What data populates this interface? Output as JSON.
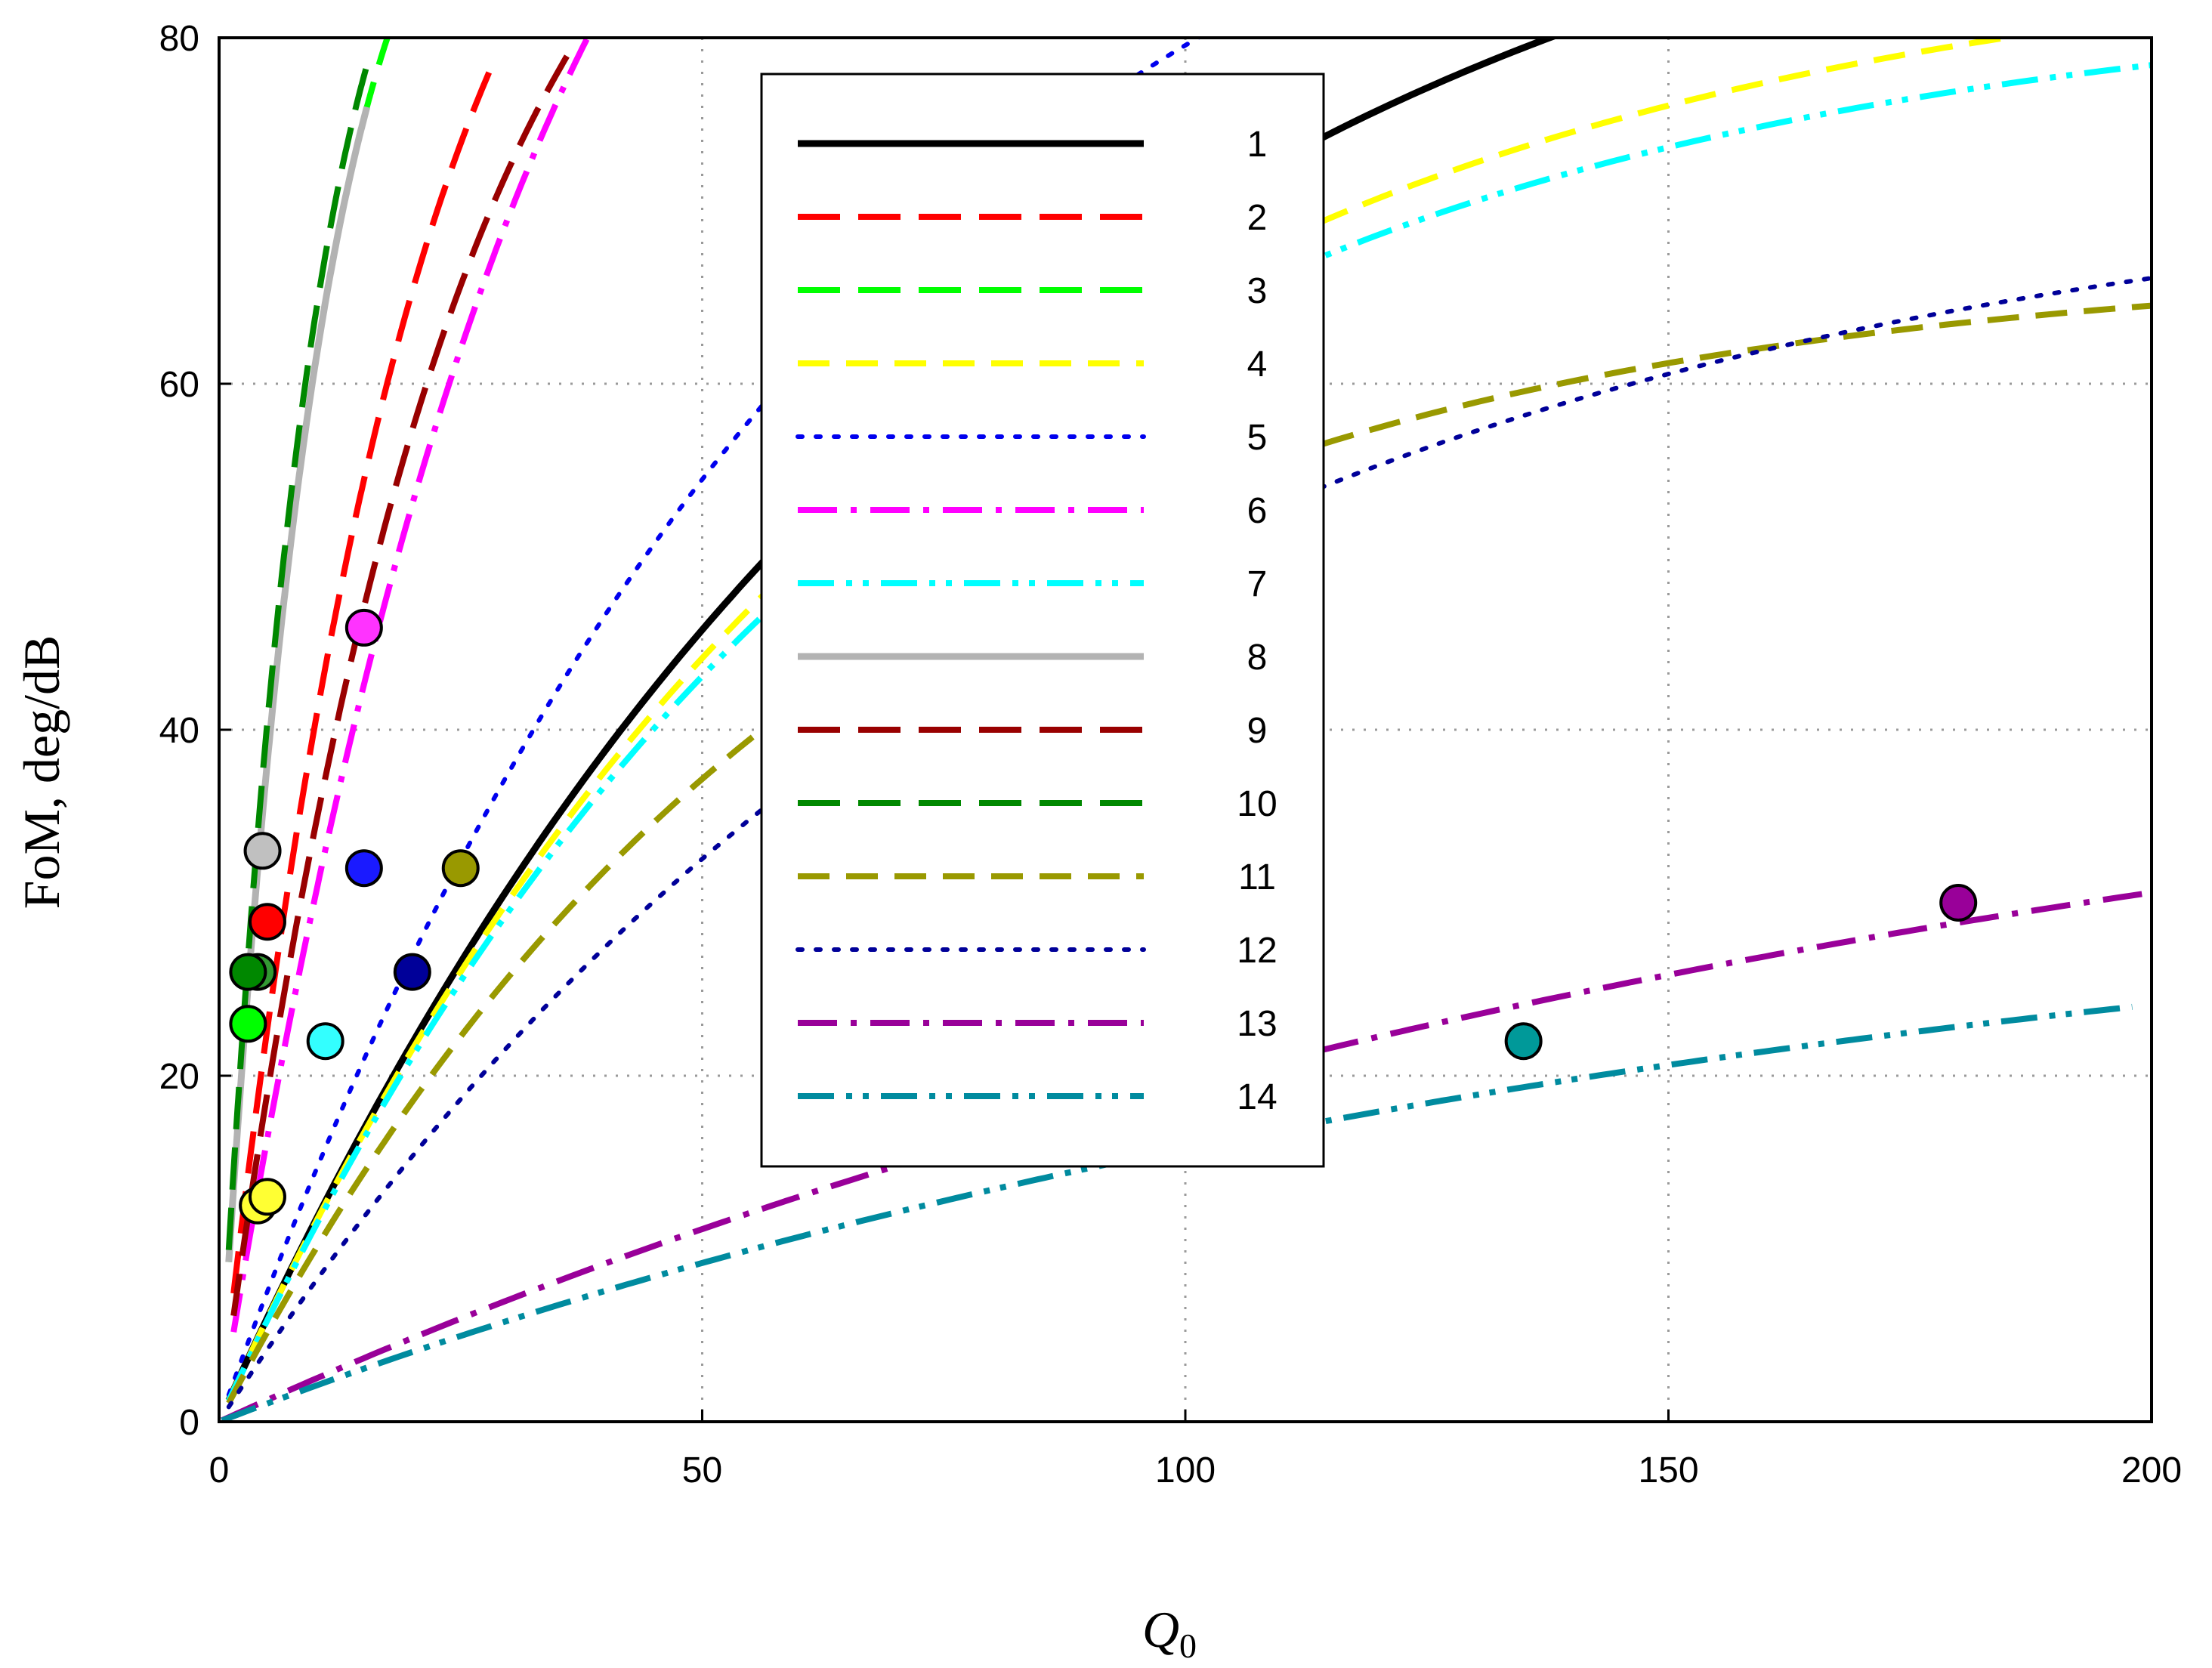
{
  "chart_data": {
    "type": "line",
    "xlabel_main": "Q",
    "xlabel_sub": "0",
    "ylabel": "FoM, deg/dB",
    "xlim": [
      0,
      200
    ],
    "ylim": [
      0,
      80
    ],
    "x_ticks": [
      0,
      50,
      100,
      150,
      200
    ],
    "y_ticks": [
      0,
      20,
      40,
      60,
      80
    ],
    "grid": true,
    "legend_position": "top-center",
    "series": [
      {
        "name": "1",
        "color": "#000000",
        "style": "solid",
        "a": 96.3,
        "b": 0.0129,
        "x_start": 1.0,
        "x_end": 200,
        "marker": {
          "x": 4,
          "y": 12.5,
          "color": "#ffff33"
        }
      },
      {
        "name": "2",
        "color": "#ff0000",
        "style": "dash-long",
        "a": 104.5,
        "b": 0.0491,
        "x_start": 1.5,
        "x_end": 28,
        "marker": {
          "x": 5,
          "y": 28.9,
          "color": "#ff0000"
        }
      },
      {
        "name": "3",
        "color": "#00ff00",
        "style": "dash-long",
        "a": 97,
        "b": 0.1,
        "x_start": 1.0,
        "x_end": 18,
        "marker": {
          "x": 3,
          "y": 23,
          "color": "#00ff00"
        }
      },
      {
        "name": "4",
        "color": "#ffff00",
        "style": "dash",
        "a": 86,
        "b": 0.0144,
        "x_start": 1.0,
        "x_end": 200,
        "marker": {
          "x": 5,
          "y": 13,
          "color": "#ffff33"
        }
      },
      {
        "name": "5",
        "color": "#0000ee",
        "style": "dot",
        "a": 101,
        "b": 0.0155,
        "x_start": 1.0,
        "x_end": 200,
        "marker": {
          "x": 15,
          "y": 32,
          "color": "#1a1aff"
        }
      },
      {
        "name": "6",
        "color": "#ff00ff",
        "style": "dash-dot",
        "a": 117,
        "b": 0.0302,
        "x_start": 1.5,
        "x_end": 42,
        "marker": {
          "x": 15,
          "y": 45.9,
          "color": "#ff33ff"
        }
      },
      {
        "name": "7",
        "color": "#00ffff",
        "style": "dash-dot-dot",
        "a": 82.8,
        "b": 0.0147,
        "x_start": 1.0,
        "x_end": 200,
        "marker": {
          "x": 11,
          "y": 22,
          "color": "#33ffff"
        }
      },
      {
        "name": "8",
        "color": "#b3b3b3",
        "style": "solid",
        "a": 97,
        "b": 0.1,
        "x_start": 1.0,
        "x_end": 15.3,
        "marker": {
          "x": 4.5,
          "y": 33,
          "color": "#c0c0c0"
        }
      },
      {
        "name": "9",
        "color": "#990000",
        "style": "dash-long",
        "a": 102,
        "b": 0.0413,
        "x_start": 1.5,
        "x_end": 36,
        "marker": {
          "x": 4,
          "y": 26,
          "color": "#339933"
        }
      },
      {
        "name": "10",
        "color": "#008800",
        "style": "dash-long",
        "a": 97,
        "b": 0.108,
        "x_start": 1.0,
        "x_end": 15.3,
        "marker": {
          "x": 3,
          "y": 26,
          "color": "#008800"
        }
      },
      {
        "name": "11",
        "color": "#999900",
        "style": "dash",
        "a": 67.2,
        "b": 0.0161,
        "x_start": 1.0,
        "x_end": 200,
        "marker": {
          "x": 25,
          "y": 32,
          "color": "#999900"
        }
      },
      {
        "name": "12",
        "color": "#000099",
        "style": "dot",
        "a": 73,
        "b": 0.0118,
        "x_start": 1.0,
        "x_end": 200,
        "marker": {
          "x": 20,
          "y": 26,
          "color": "#000099"
        }
      },
      {
        "name": "13",
        "color": "#990099",
        "style": "dash-dot",
        "a": 45.1,
        "b": 0.00567,
        "x_start": 0.3,
        "x_end": 200,
        "marker": {
          "x": 180,
          "y": 30,
          "color": "#990099"
        }
      },
      {
        "name": "14",
        "color": "#008b9f",
        "style": "dash-dot-dot",
        "a": 33.2,
        "b": 0.00647,
        "x_start": 0.3,
        "x_end": 198,
        "marker": {
          "x": 135,
          "y": 22,
          "color": "#009999"
        }
      }
    ]
  }
}
